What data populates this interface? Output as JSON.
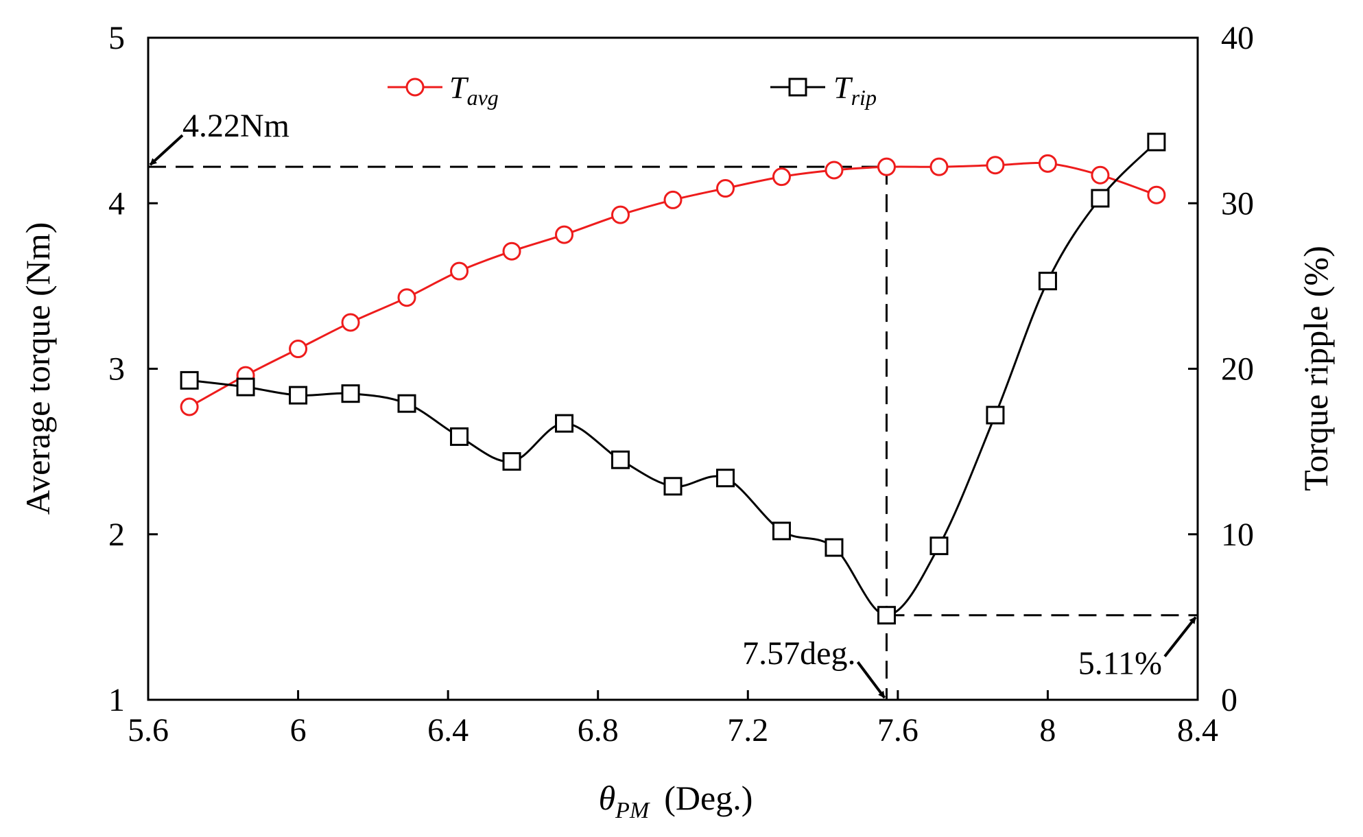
{
  "chart_data": {
    "type": "line",
    "title": "",
    "x": [
      5.71,
      5.86,
      6.0,
      6.14,
      6.29,
      6.43,
      6.57,
      6.71,
      6.86,
      7.0,
      7.14,
      7.29,
      7.43,
      7.57,
      7.71,
      7.86,
      8.0,
      8.14,
      8.29
    ],
    "xlim": [
      5.6,
      8.4
    ],
    "xticks": [
      "5.6",
      "6",
      "6.4",
      "6.8",
      "7.2",
      "7.6",
      "8",
      "8.4"
    ],
    "xticks_values": [
      5.6,
      6.0,
      6.4,
      6.8,
      7.2,
      7.6,
      8.0,
      8.4
    ],
    "xlabel": {
      "symbol": "θ",
      "subscript": "PM",
      "unit": "(Deg.)"
    },
    "y_left": {
      "label": "Average torque  (Nm)",
      "lim": [
        1,
        5
      ],
      "ticks": [
        "1",
        "2",
        "3",
        "4",
        "5"
      ],
      "ticks_values": [
        1,
        2,
        3,
        4,
        5
      ]
    },
    "y_right": {
      "label": "Torque ripple (%)",
      "lim": [
        0,
        40
      ],
      "ticks": [
        "0",
        "10",
        "20",
        "30",
        "40"
      ],
      "ticks_values": [
        0,
        10,
        20,
        30,
        40
      ]
    },
    "series": [
      {
        "name": "T_avg",
        "label_main": "T",
        "label_sub": "avg",
        "axis": "left",
        "marker": "circle",
        "color": "#ee1c1c",
        "values": [
          2.77,
          2.96,
          3.12,
          3.28,
          3.43,
          3.59,
          3.71,
          3.81,
          3.93,
          4.02,
          4.09,
          4.16,
          4.2,
          4.22,
          4.22,
          4.23,
          4.24,
          4.17,
          4.05
        ]
      },
      {
        "name": "T_rip",
        "label_main": "T",
        "label_sub": "rip",
        "axis": "right",
        "marker": "square",
        "color": "#000000",
        "values": [
          19.3,
          18.9,
          18.4,
          18.5,
          17.9,
          15.9,
          14.4,
          16.7,
          14.5,
          12.9,
          13.4,
          10.2,
          9.2,
          5.11,
          9.3,
          17.2,
          25.3,
          30.3,
          33.7
        ]
      }
    ],
    "annotations": [
      {
        "id": "avg_max",
        "text": "4.22Nm",
        "value": 4.22,
        "axis": "left"
      },
      {
        "id": "opt_angle",
        "text": "7.57deg.",
        "value": 7.57,
        "axis": "x"
      },
      {
        "id": "min_ripple",
        "text": "5.11%",
        "value": 5.11,
        "axis": "right"
      }
    ],
    "legend_position": "top",
    "grid": false
  }
}
